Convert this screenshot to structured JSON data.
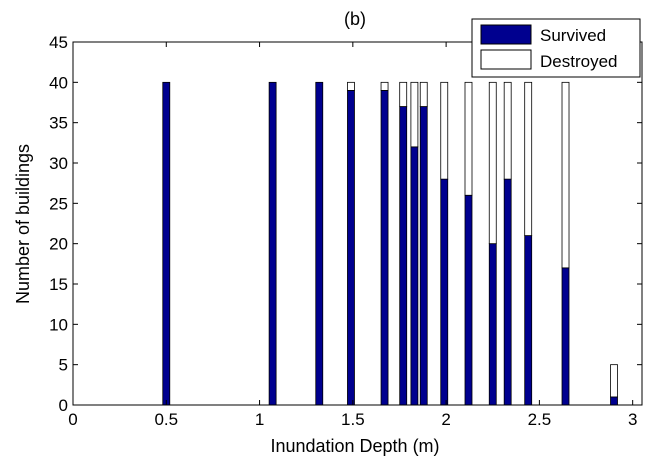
{
  "chart_data": {
    "type": "bar",
    "stacked": true,
    "title": "(b)",
    "xlabel": "Inundation Depth (m)",
    "ylabel": "Number of buildings",
    "xlim": [
      0,
      3.05
    ],
    "ylim": [
      0,
      45
    ],
    "xticks": [
      "0",
      "0.5",
      "1",
      "1.5",
      "2",
      "2.5",
      "3"
    ],
    "xtick_values": [
      0,
      0.5,
      1,
      1.5,
      2,
      2.5,
      3
    ],
    "yticks": [
      "0",
      "5",
      "10",
      "15",
      "20",
      "25",
      "30",
      "35",
      "40",
      "45"
    ],
    "ytick_values": [
      0,
      5,
      10,
      15,
      20,
      25,
      30,
      35,
      40,
      45
    ],
    "grid": false,
    "legend_position": "top-right",
    "x": [
      0.5,
      1.07,
      1.32,
      1.49,
      1.67,
      1.77,
      1.83,
      1.88,
      1.99,
      2.12,
      2.25,
      2.33,
      2.44,
      2.64,
      2.9
    ],
    "series": [
      {
        "name": "Survived",
        "color": "#00008f",
        "values": [
          40,
          40,
          40,
          39,
          39,
          37,
          32,
          37,
          28,
          26,
          20,
          28,
          21,
          17,
          1
        ]
      },
      {
        "name": "Destroyed",
        "color": "#ffffff",
        "values": [
          0,
          0,
          0,
          1,
          1,
          3,
          8,
          3,
          12,
          14,
          20,
          12,
          19,
          23,
          4
        ]
      }
    ]
  }
}
